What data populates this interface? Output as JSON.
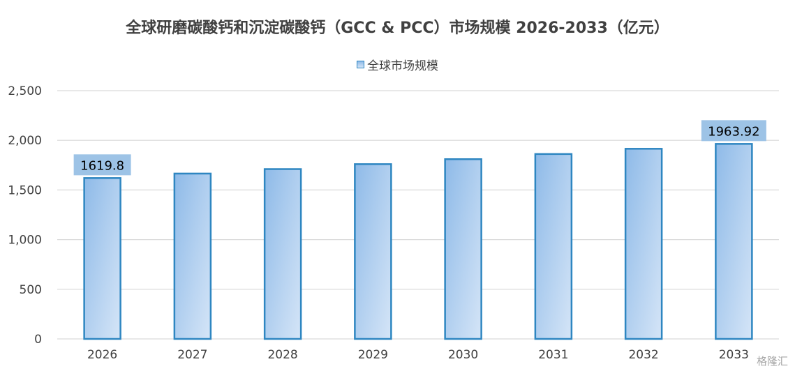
{
  "chart_data": {
    "type": "bar",
    "title": "全球研磨碳酸钙和沉淀碳酸钙（GCC & PCC）市场规模 2026-2033（亿元）",
    "legend": "全球市场规模",
    "categories": [
      "2026",
      "2027",
      "2028",
      "2029",
      "2030",
      "2031",
      "2032",
      "2033"
    ],
    "series": [
      {
        "name": "全球市场规模",
        "values": [
          1619.8,
          1665,
          1710,
          1760,
          1810,
          1862,
          1915,
          1963.92
        ]
      }
    ],
    "data_labels": [
      {
        "category": "2026",
        "text": "1619.8"
      },
      {
        "category": "2033",
        "text": "1963.92"
      }
    ],
    "y_ticks": [
      "0",
      "500",
      "1,000",
      "1,500",
      "2,000",
      "2,500"
    ],
    "ylim": [
      0,
      2500
    ],
    "grid": true,
    "legend_position": "top",
    "colors": {
      "bar_top": "#8ebae8",
      "bar_bottom": "#d5e5f7",
      "bar_border": "#2e86c1",
      "label_bg": "#9dc3e6",
      "grid": "#d9d9d9"
    }
  },
  "watermark": "格隆汇"
}
